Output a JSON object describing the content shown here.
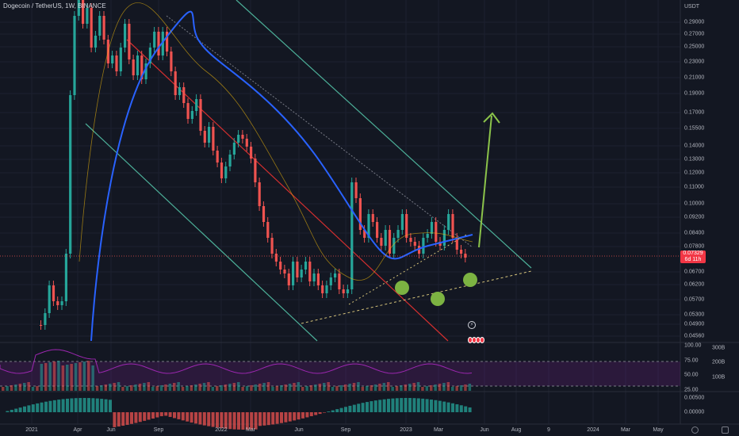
{
  "header": {
    "title": "Dogecoin / TetherUS, 1W, BINANCE"
  },
  "price_axis": {
    "currency": "USDT",
    "ticks": [
      "0.29000",
      "0.27000",
      "0.25000",
      "0.23000",
      "0.21000",
      "0.19000",
      "0.17000",
      "0.15500",
      "0.14000",
      "0.13000",
      "0.12000",
      "0.11000",
      "0.10000",
      "0.09200",
      "0.08400",
      "0.07800",
      "0.06700",
      "0.06200",
      "0.05700",
      "0.05300",
      "0.04900",
      "0.04560"
    ]
  },
  "last_price": {
    "price": "0.07329",
    "countdown": "6d 11h",
    "color": "#f23645"
  },
  "rsi_axis": {
    "ticks": [
      "100.00",
      "75.00",
      "50.00",
      "25.00"
    ]
  },
  "volume_axis": {
    "ticks": [
      "300B",
      "200B",
      "100B"
    ]
  },
  "macd_axis": {
    "ticks": [
      "0.00500",
      "0.00000"
    ]
  },
  "time_axis": {
    "ticks": [
      "2021",
      "Apr",
      "Jun",
      "Sep",
      "2022",
      "Mar",
      "Jun",
      "Sep",
      "2023",
      "Mar",
      "Jun",
      "Aug",
      "9",
      "2024",
      "Mar",
      "May"
    ]
  },
  "colors": {
    "up": "#26a69a",
    "down": "#ef5350",
    "ma_blue": "#2962ff",
    "channel": "#4caf98",
    "arrow": "#8bc34a",
    "marker": "#7cb342",
    "rsi": "#9c27b0"
  },
  "icons": {
    "flash": "flash-icon",
    "events": "event-markers",
    "logo": "tradingview-logo-icon",
    "settings": "settings-icon"
  },
  "chart_data": {
    "type": "candlestick",
    "title": "Dogecoin / TetherUS, 1W, BINANCE",
    "ylabel": "USDT",
    "ylim": [
      0.0456,
      0.3
    ],
    "y_scale": "log",
    "x_range": [
      "2021",
      "2024"
    ],
    "last_price": 0.07329,
    "panes": [
      "price",
      "rsi",
      "volume",
      "macd"
    ],
    "grid": true,
    "annotations": [
      "descending channel",
      "ascending support line",
      "up arrow",
      "three circle markers"
    ]
  }
}
